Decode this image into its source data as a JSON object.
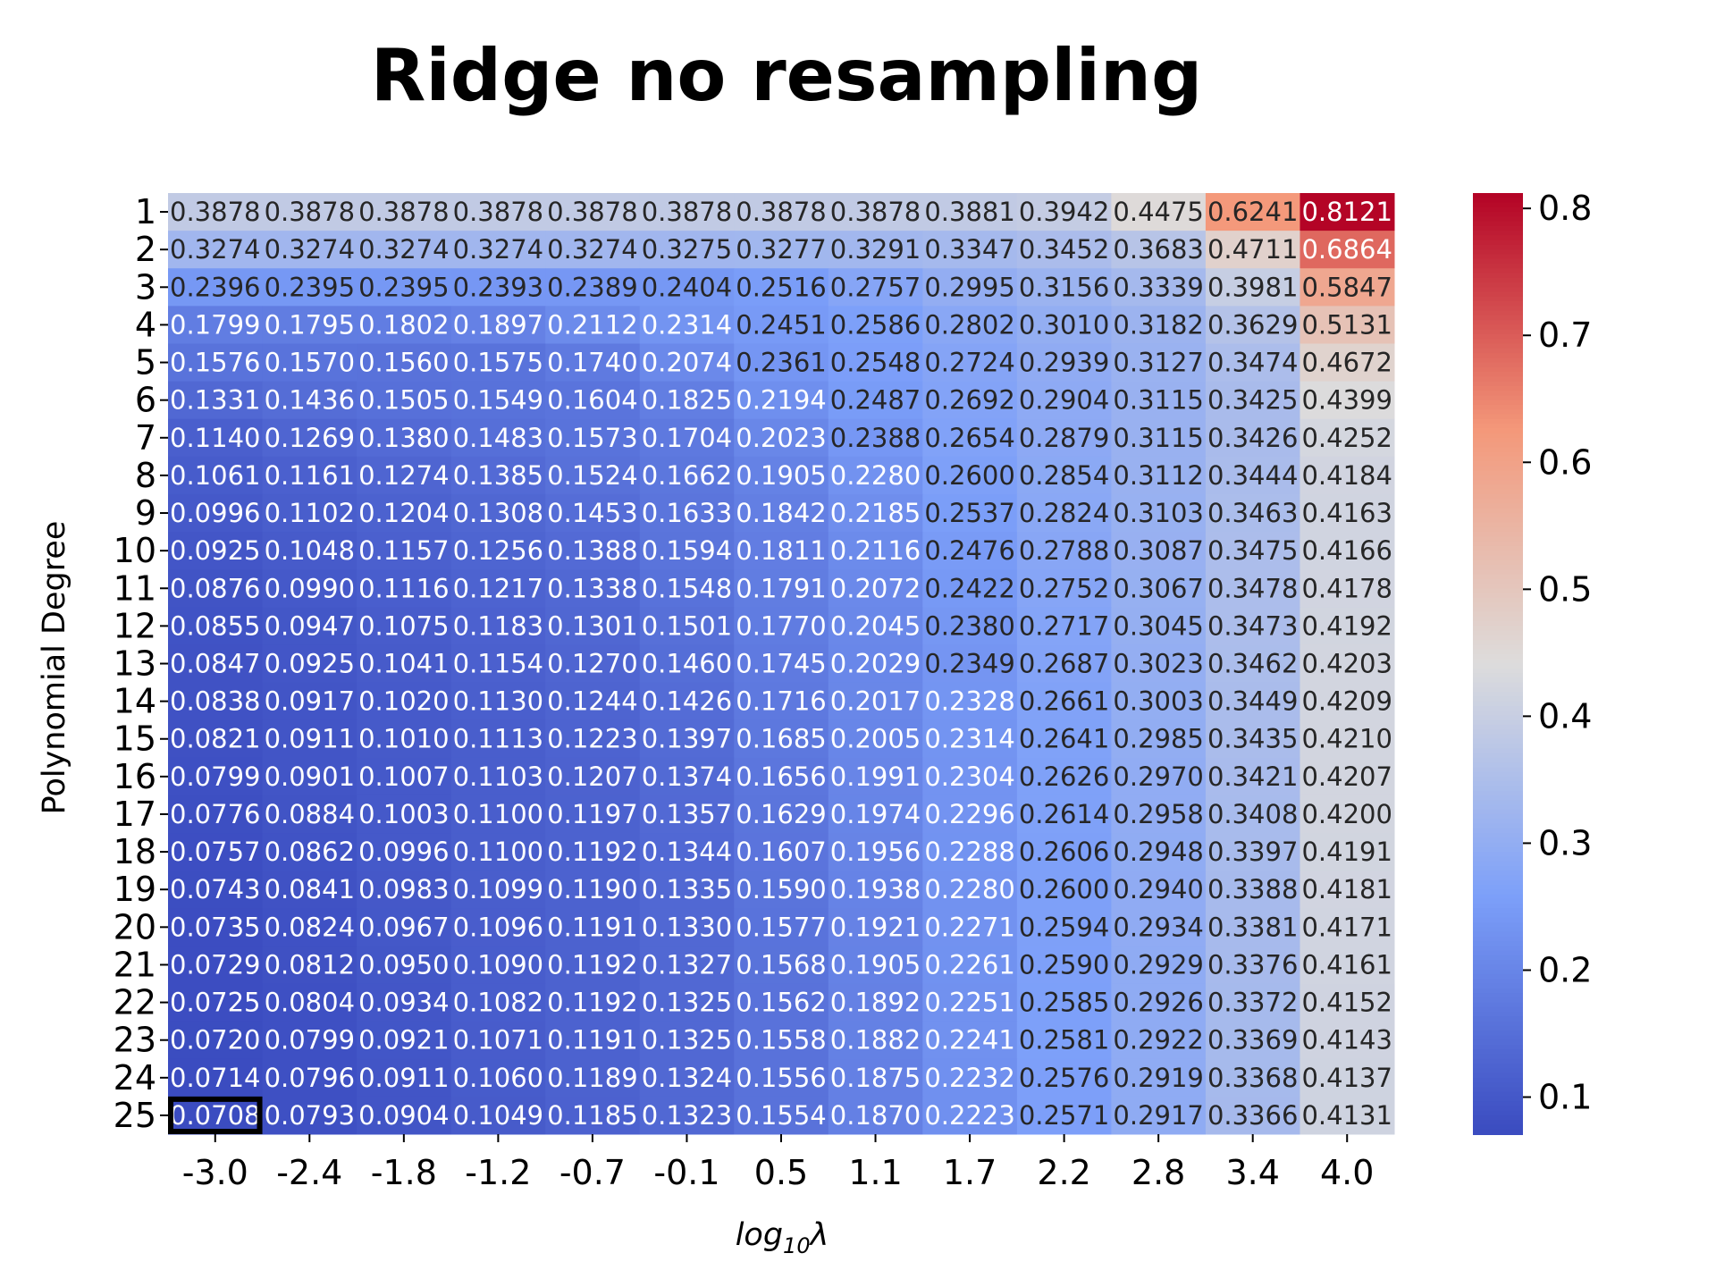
{
  "chart_data": {
    "type": "heatmap",
    "title": "Ridge no resampling",
    "xlabel": "log10λ",
    "ylabel": "Polynomial Degree",
    "x_categories": [
      "-3.0",
      "-2.4",
      "-1.8",
      "-1.2",
      "-0.7",
      "-0.1",
      "0.5",
      "1.1",
      "1.7",
      "2.2",
      "2.8",
      "3.4",
      "4.0"
    ],
    "y_categories": [
      "1",
      "2",
      "3",
      "4",
      "5",
      "6",
      "7",
      "8",
      "9",
      "10",
      "11",
      "12",
      "13",
      "14",
      "15",
      "16",
      "17",
      "18",
      "19",
      "20",
      "21",
      "22",
      "23",
      "24",
      "25"
    ],
    "values": [
      [
        "0.3878",
        "0.3878",
        "0.3878",
        "0.3878",
        "0.3878",
        "0.3878",
        "0.3878",
        "0.3878",
        "0.3881",
        "0.3942",
        "0.4475",
        "0.6241",
        "0.8121"
      ],
      [
        "0.3274",
        "0.3274",
        "0.3274",
        "0.3274",
        "0.3274",
        "0.3275",
        "0.3277",
        "0.3291",
        "0.3347",
        "0.3452",
        "0.3683",
        "0.4711",
        "0.6864"
      ],
      [
        "0.2396",
        "0.2395",
        "0.2395",
        "0.2393",
        "0.2389",
        "0.2404",
        "0.2516",
        "0.2757",
        "0.2995",
        "0.3156",
        "0.3339",
        "0.3981",
        "0.5847"
      ],
      [
        "0.1799",
        "0.1795",
        "0.1802",
        "0.1897",
        "0.2112",
        "0.2314",
        "0.2451",
        "0.2586",
        "0.2802",
        "0.3010",
        "0.3182",
        "0.3629",
        "0.5131"
      ],
      [
        "0.1576",
        "0.1570",
        "0.1560",
        "0.1575",
        "0.1740",
        "0.2074",
        "0.2361",
        "0.2548",
        "0.2724",
        "0.2939",
        "0.3127",
        "0.3474",
        "0.4672"
      ],
      [
        "0.1331",
        "0.1436",
        "0.1505",
        "0.1549",
        "0.1604",
        "0.1825",
        "0.2194",
        "0.2487",
        "0.2692",
        "0.2904",
        "0.3115",
        "0.3425",
        "0.4399"
      ],
      [
        "0.1140",
        "0.1269",
        "0.1380",
        "0.1483",
        "0.1573",
        "0.1704",
        "0.2023",
        "0.2388",
        "0.2654",
        "0.2879",
        "0.3115",
        "0.3426",
        "0.4252"
      ],
      [
        "0.1061",
        "0.1161",
        "0.1274",
        "0.1385",
        "0.1524",
        "0.1662",
        "0.1905",
        "0.2280",
        "0.2600",
        "0.2854",
        "0.3112",
        "0.3444",
        "0.4184"
      ],
      [
        "0.0996",
        "0.1102",
        "0.1204",
        "0.1308",
        "0.1453",
        "0.1633",
        "0.1842",
        "0.2185",
        "0.2537",
        "0.2824",
        "0.3103",
        "0.3463",
        "0.4163"
      ],
      [
        "0.0925",
        "0.1048",
        "0.1157",
        "0.1256",
        "0.1388",
        "0.1594",
        "0.1811",
        "0.2116",
        "0.2476",
        "0.2788",
        "0.3087",
        "0.3475",
        "0.4166"
      ],
      [
        "0.0876",
        "0.0990",
        "0.1116",
        "0.1217",
        "0.1338",
        "0.1548",
        "0.1791",
        "0.2072",
        "0.2422",
        "0.2752",
        "0.3067",
        "0.3478",
        "0.4178"
      ],
      [
        "0.0855",
        "0.0947",
        "0.1075",
        "0.1183",
        "0.1301",
        "0.1501",
        "0.1770",
        "0.2045",
        "0.2380",
        "0.2717",
        "0.3045",
        "0.3473",
        "0.4192"
      ],
      [
        "0.0847",
        "0.0925",
        "0.1041",
        "0.1154",
        "0.1270",
        "0.1460",
        "0.1745",
        "0.2029",
        "0.2349",
        "0.2687",
        "0.3023",
        "0.3462",
        "0.4203"
      ],
      [
        "0.0838",
        "0.0917",
        "0.1020",
        "0.1130",
        "0.1244",
        "0.1426",
        "0.1716",
        "0.2017",
        "0.2328",
        "0.2661",
        "0.3003",
        "0.3449",
        "0.4209"
      ],
      [
        "0.0821",
        "0.0911",
        "0.1010",
        "0.1113",
        "0.1223",
        "0.1397",
        "0.1685",
        "0.2005",
        "0.2314",
        "0.2641",
        "0.2985",
        "0.3435",
        "0.4210"
      ],
      [
        "0.0799",
        "0.0901",
        "0.1007",
        "0.1103",
        "0.1207",
        "0.1374",
        "0.1656",
        "0.1991",
        "0.2304",
        "0.2626",
        "0.2970",
        "0.3421",
        "0.4207"
      ],
      [
        "0.0776",
        "0.0884",
        "0.1003",
        "0.1100",
        "0.1197",
        "0.1357",
        "0.1629",
        "0.1974",
        "0.2296",
        "0.2614",
        "0.2958",
        "0.3408",
        "0.4200"
      ],
      [
        "0.0757",
        "0.0862",
        "0.0996",
        "0.1100",
        "0.1192",
        "0.1344",
        "0.1607",
        "0.1956",
        "0.2288",
        "0.2606",
        "0.2948",
        "0.3397",
        "0.4191"
      ],
      [
        "0.0743",
        "0.0841",
        "0.0983",
        "0.1099",
        "0.1190",
        "0.1335",
        "0.1590",
        "0.1938",
        "0.2280",
        "0.2600",
        "0.2940",
        "0.3388",
        "0.4181"
      ],
      [
        "0.0735",
        "0.0824",
        "0.0967",
        "0.1096",
        "0.1191",
        "0.1330",
        "0.1577",
        "0.1921",
        "0.2271",
        "0.2594",
        "0.2934",
        "0.3381",
        "0.4171"
      ],
      [
        "0.0729",
        "0.0812",
        "0.0950",
        "0.1090",
        "0.1192",
        "0.1327",
        "0.1568",
        "0.1905",
        "0.2261",
        "0.2590",
        "0.2929",
        "0.3376",
        "0.4161"
      ],
      [
        "0.0725",
        "0.0804",
        "0.0934",
        "0.1082",
        "0.1192",
        "0.1325",
        "0.1562",
        "0.1892",
        "0.2251",
        "0.2585",
        "0.2926",
        "0.3372",
        "0.4152"
      ],
      [
        "0.0720",
        "0.0799",
        "0.0921",
        "0.1071",
        "0.1191",
        "0.1325",
        "0.1558",
        "0.1882",
        "0.2241",
        "0.2581",
        "0.2922",
        "0.3369",
        "0.4143"
      ],
      [
        "0.0714",
        "0.0796",
        "0.0911",
        "0.1060",
        "0.1189",
        "0.1324",
        "0.1556",
        "0.1875",
        "0.2232",
        "0.2576",
        "0.2919",
        "0.3368",
        "0.4137"
      ],
      [
        "0.0708",
        "0.0793",
        "0.0904",
        "0.1049",
        "0.1185",
        "0.1323",
        "0.1554",
        "0.1870",
        "0.2223",
        "0.2571",
        "0.2917",
        "0.3366",
        "0.4131"
      ]
    ],
    "colormap": "coolwarm",
    "vmin": 0.0708,
    "vmax": 0.8121,
    "colorbar_ticks": [
      "0.1",
      "0.2",
      "0.3",
      "0.4",
      "0.5",
      "0.6",
      "0.7",
      "0.8"
    ],
    "highlighted_cell": {
      "row": "25",
      "col": "-3.0"
    },
    "highlight_color": "#000000"
  }
}
